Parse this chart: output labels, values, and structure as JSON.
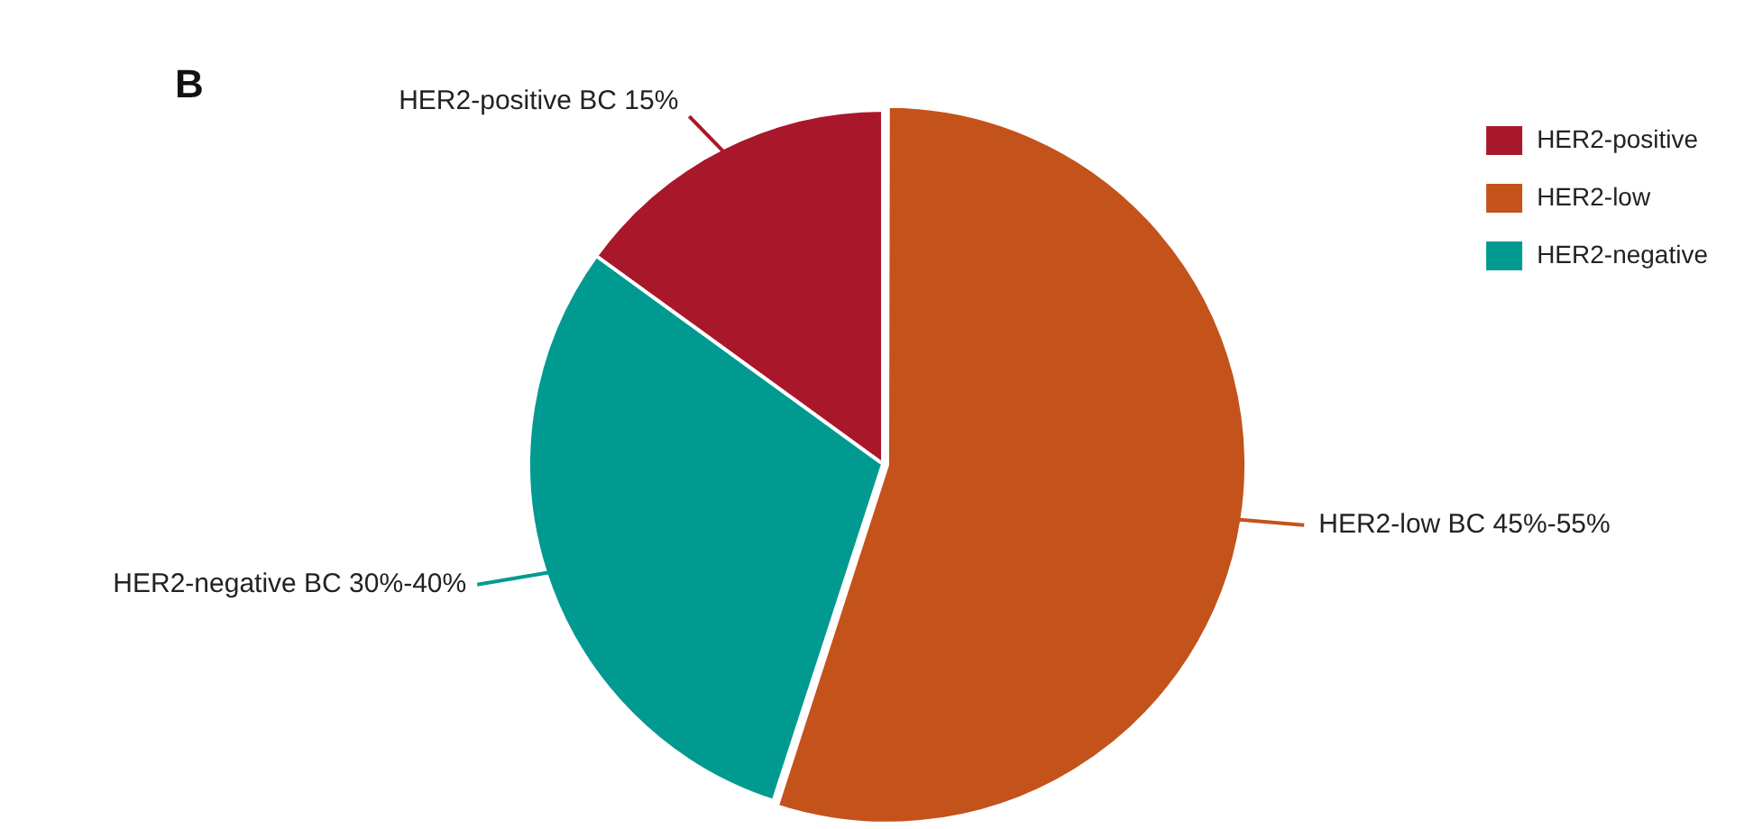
{
  "chart_data": {
    "type": "pie",
    "title": "B",
    "categories": [
      "HER2-positive",
      "HER2-low",
      "HER2-negative"
    ],
    "values": [
      15,
      55,
      30
    ],
    "colors": [
      "#a9172b",
      "#c4521b",
      "#009a91"
    ],
    "annotations": [
      "HER2-positive BC 15%",
      "HER2-low BC 45%-55%",
      "HER2-negative BC 30%-40%"
    ],
    "legend": "top right"
  }
}
